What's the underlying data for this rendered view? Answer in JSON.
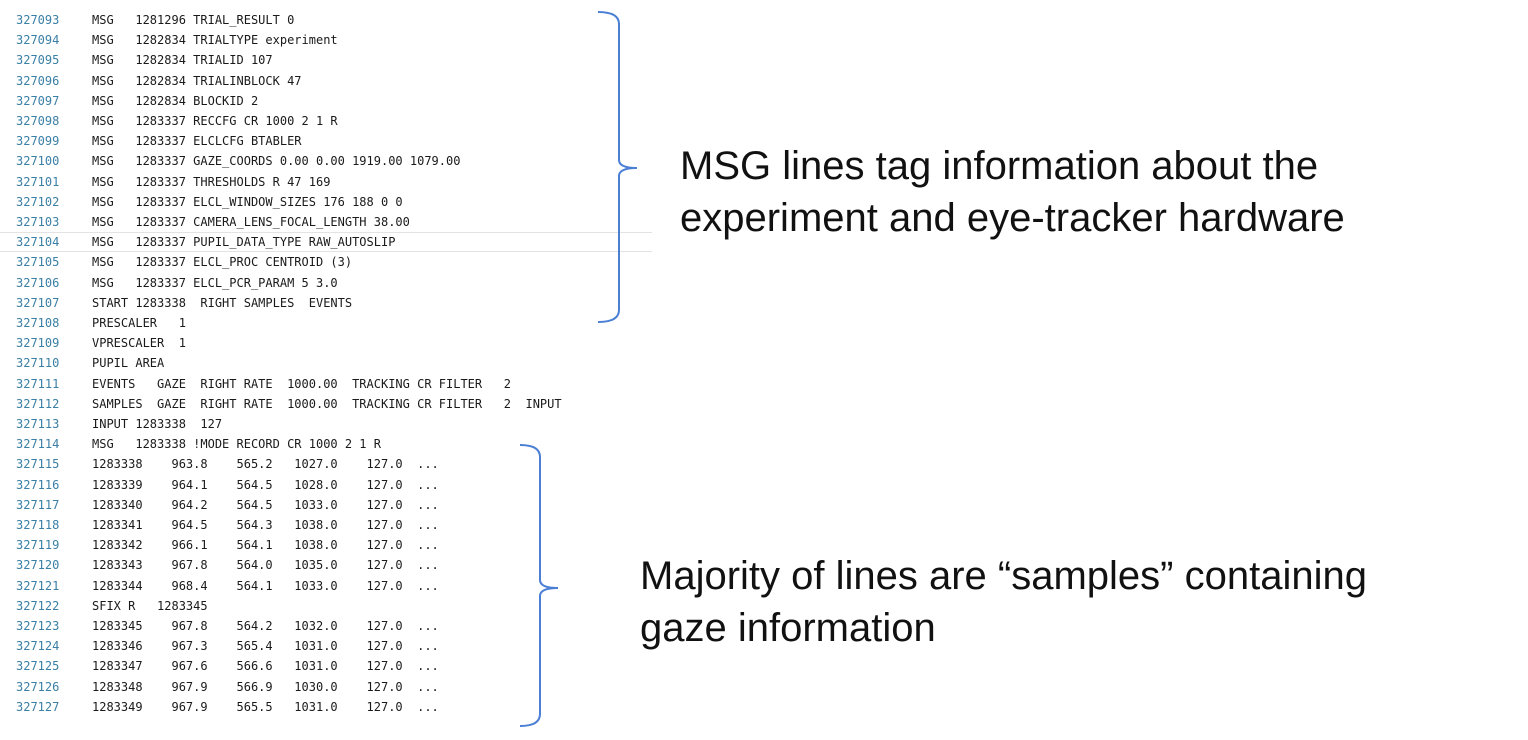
{
  "log": {
    "lines": [
      {
        "ln": "327093",
        "text": "MSG   1281296 TRIAL_RESULT 0"
      },
      {
        "ln": "327094",
        "text": "MSG   1282834 TRIALTYPE experiment"
      },
      {
        "ln": "327095",
        "text": "MSG   1282834 TRIALID 107"
      },
      {
        "ln": "327096",
        "text": "MSG   1282834 TRIALINBLOCK 47"
      },
      {
        "ln": "327097",
        "text": "MSG   1282834 BLOCKID 2"
      },
      {
        "ln": "327098",
        "text": "MSG   1283337 RECCFG CR 1000 2 1 R"
      },
      {
        "ln": "327099",
        "text": "MSG   1283337 ELCLCFG BTABLER"
      },
      {
        "ln": "327100",
        "text": "MSG   1283337 GAZE_COORDS 0.00 0.00 1919.00 1079.00"
      },
      {
        "ln": "327101",
        "text": "MSG   1283337 THRESHOLDS R 47 169"
      },
      {
        "ln": "327102",
        "text": "MSG   1283337 ELCL_WINDOW_SIZES 176 188 0 0"
      },
      {
        "ln": "327103",
        "text": "MSG   1283337 CAMERA_LENS_FOCAL_LENGTH 38.00"
      },
      {
        "ln": "327104",
        "text": "MSG   1283337 PUPIL_DATA_TYPE RAW_AUTOSLIP"
      },
      {
        "ln": "327105",
        "text": "MSG   1283337 ELCL_PROC CENTROID (3)"
      },
      {
        "ln": "327106",
        "text": "MSG   1283337 ELCL_PCR_PARAM 5 3.0"
      },
      {
        "ln": "327107",
        "text": "START 1283338  RIGHT SAMPLES  EVENTS"
      },
      {
        "ln": "327108",
        "text": "PRESCALER   1"
      },
      {
        "ln": "327109",
        "text": "VPRESCALER  1"
      },
      {
        "ln": "327110",
        "text": "PUPIL AREA"
      },
      {
        "ln": "327111",
        "text": "EVENTS   GAZE  RIGHT RATE  1000.00  TRACKING CR FILTER   2"
      },
      {
        "ln": "327112",
        "text": "SAMPLES  GAZE  RIGHT RATE  1000.00  TRACKING CR FILTER   2  INPUT"
      },
      {
        "ln": "327113",
        "text": "INPUT 1283338  127"
      },
      {
        "ln": "327114",
        "text": "MSG   1283338 !MODE RECORD CR 1000 2 1 R"
      },
      {
        "ln": "327115",
        "text": "1283338    963.8    565.2   1027.0    127.0  ..."
      },
      {
        "ln": "327116",
        "text": "1283339    964.1    564.5   1028.0    127.0  ..."
      },
      {
        "ln": "327117",
        "text": "1283340    964.2    564.5   1033.0    127.0  ..."
      },
      {
        "ln": "327118",
        "text": "1283341    964.5    564.3   1038.0    127.0  ..."
      },
      {
        "ln": "327119",
        "text": "1283342    966.1    564.1   1038.0    127.0  ..."
      },
      {
        "ln": "327120",
        "text": "1283343    967.8    564.0   1035.0    127.0  ..."
      },
      {
        "ln": "327121",
        "text": "1283344    968.4    564.1   1033.0    127.0  ..."
      },
      {
        "ln": "327122",
        "text": "SFIX R   1283345"
      },
      {
        "ln": "327123",
        "text": "1283345    967.8    564.2   1032.0    127.0  ..."
      },
      {
        "ln": "327124",
        "text": "1283346    967.3    565.4   1031.0    127.0  ..."
      },
      {
        "ln": "327125",
        "text": "1283347    967.6    566.6   1031.0    127.0  ..."
      },
      {
        "ln": "327126",
        "text": "1283348    967.9    566.9   1030.0    127.0  ..."
      },
      {
        "ln": "327127",
        "text": "1283349    967.9    565.5   1031.0    127.0  ..."
      }
    ]
  },
  "annotations": {
    "msg_note": "MSG lines tag information about the\nexperiment and eye-tracker hardware",
    "samples_note": "Majority of lines are “samples” containing\ngaze information"
  },
  "colors": {
    "line_number": "#3a7fa6",
    "code_text": "#1a1a1a",
    "brace": "#4a7fd4",
    "highlight_border": "#e3e3e3"
  }
}
